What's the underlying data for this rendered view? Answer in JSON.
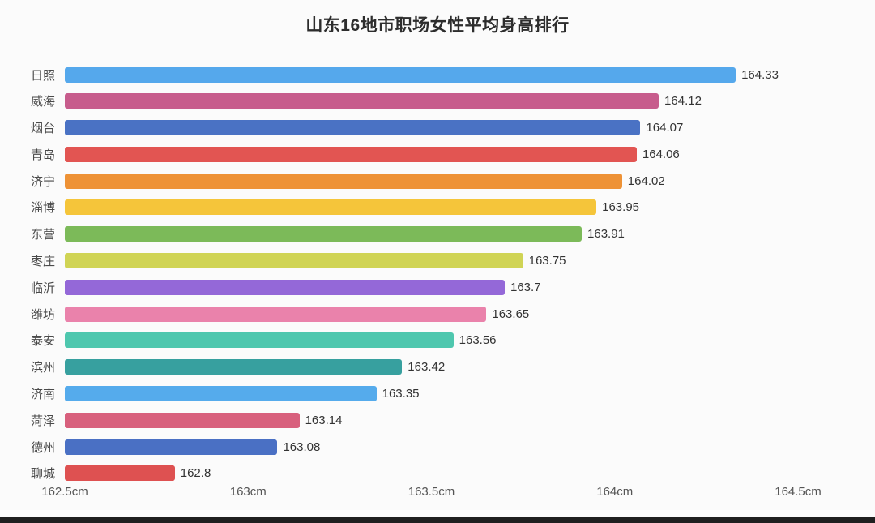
{
  "title": "山东16地市职场女性平均身高排行",
  "chart_data": {
    "type": "bar",
    "orientation": "horizontal",
    "title": "山东16地市职场女性平均身高排行",
    "xlabel": "",
    "ylabel": "",
    "xlim": [
      162.5,
      164.5
    ],
    "x_ticks": [
      "162.5cm",
      "163cm",
      "163.5cm",
      "164cm",
      "164.5cm"
    ],
    "grid": false,
    "legend": false,
    "categories": [
      "日照",
      "威海",
      "烟台",
      "青岛",
      "济宁",
      "淄博",
      "东营",
      "枣庄",
      "临沂",
      "潍坊",
      "泰安",
      "滨州",
      "济南",
      "菏泽",
      "德州",
      "聊城"
    ],
    "values": [
      164.33,
      164.12,
      164.07,
      164.06,
      164.02,
      163.95,
      163.91,
      163.75,
      163.7,
      163.65,
      163.56,
      163.42,
      163.35,
      163.14,
      163.08,
      162.8
    ],
    "value_labels": [
      "164.33",
      "164.12",
      "164.07",
      "164.06",
      "164.02",
      "163.95",
      "163.91",
      "163.75",
      "163.7",
      "163.65",
      "163.56",
      "163.42",
      "163.35",
      "163.14",
      "163.08",
      "162.8"
    ],
    "colors": [
      "#55a8ec",
      "#c75c8c",
      "#4a72c4",
      "#e25552",
      "#ee9236",
      "#f5c53a",
      "#7cba59",
      "#d0d455",
      "#9468d8",
      "#ea82ab",
      "#4ec7ae",
      "#37a09f",
      "#55abec",
      "#d8607d",
      "#4a70c4",
      "#de5151"
    ],
    "unit": "cm"
  }
}
